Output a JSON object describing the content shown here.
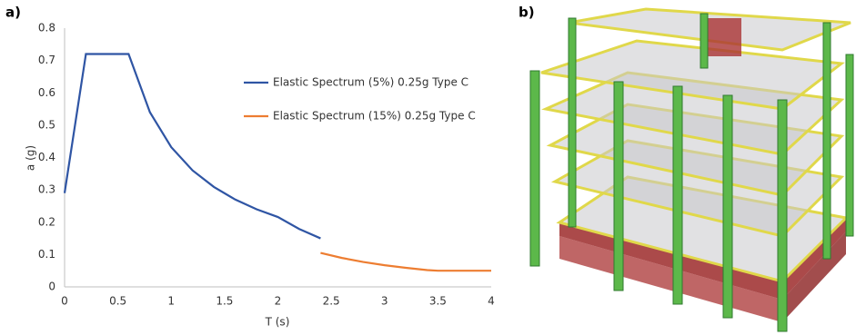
{
  "panel_a_label": "a)",
  "panel_b_label": "b)",
  "chart_data": {
    "type": "line",
    "x_label": "T (s)",
    "y_label": "a (g)",
    "series": [
      {
        "name": "Elastic Spectrum (5%) 0.25g Type C",
        "color": "#2f55a4",
        "x": [
          0,
          0.2,
          0.6,
          0.8,
          1.0,
          1.2,
          1.4,
          1.6,
          1.8,
          2.0,
          2.2,
          2.4
        ],
        "values": [
          0.29,
          0.72,
          0.72,
          0.54,
          0.432,
          0.36,
          0.309,
          0.27,
          0.24,
          0.216,
          0.179,
          0.15
        ]
      },
      {
        "name": "Elastic Spectrum (15%) 0.25g Type C",
        "color": "#ed7d31",
        "x": [
          2.4,
          2.6,
          2.8,
          3.0,
          3.2,
          3.4,
          3.5,
          4.0
        ],
        "values": [
          0.105,
          0.0895,
          0.077,
          0.067,
          0.059,
          0.052,
          0.05,
          0.05
        ]
      }
    ],
    "xlim": [
      0,
      4
    ],
    "ylim": [
      0,
      0.8
    ],
    "xticks": [
      0,
      0.5,
      1,
      1.5,
      2,
      2.5,
      3,
      3.5,
      4
    ],
    "yticks": [
      0,
      0.1,
      0.2,
      0.3,
      0.4,
      0.5,
      0.6,
      0.7,
      0.8
    ],
    "grid": false
  }
}
